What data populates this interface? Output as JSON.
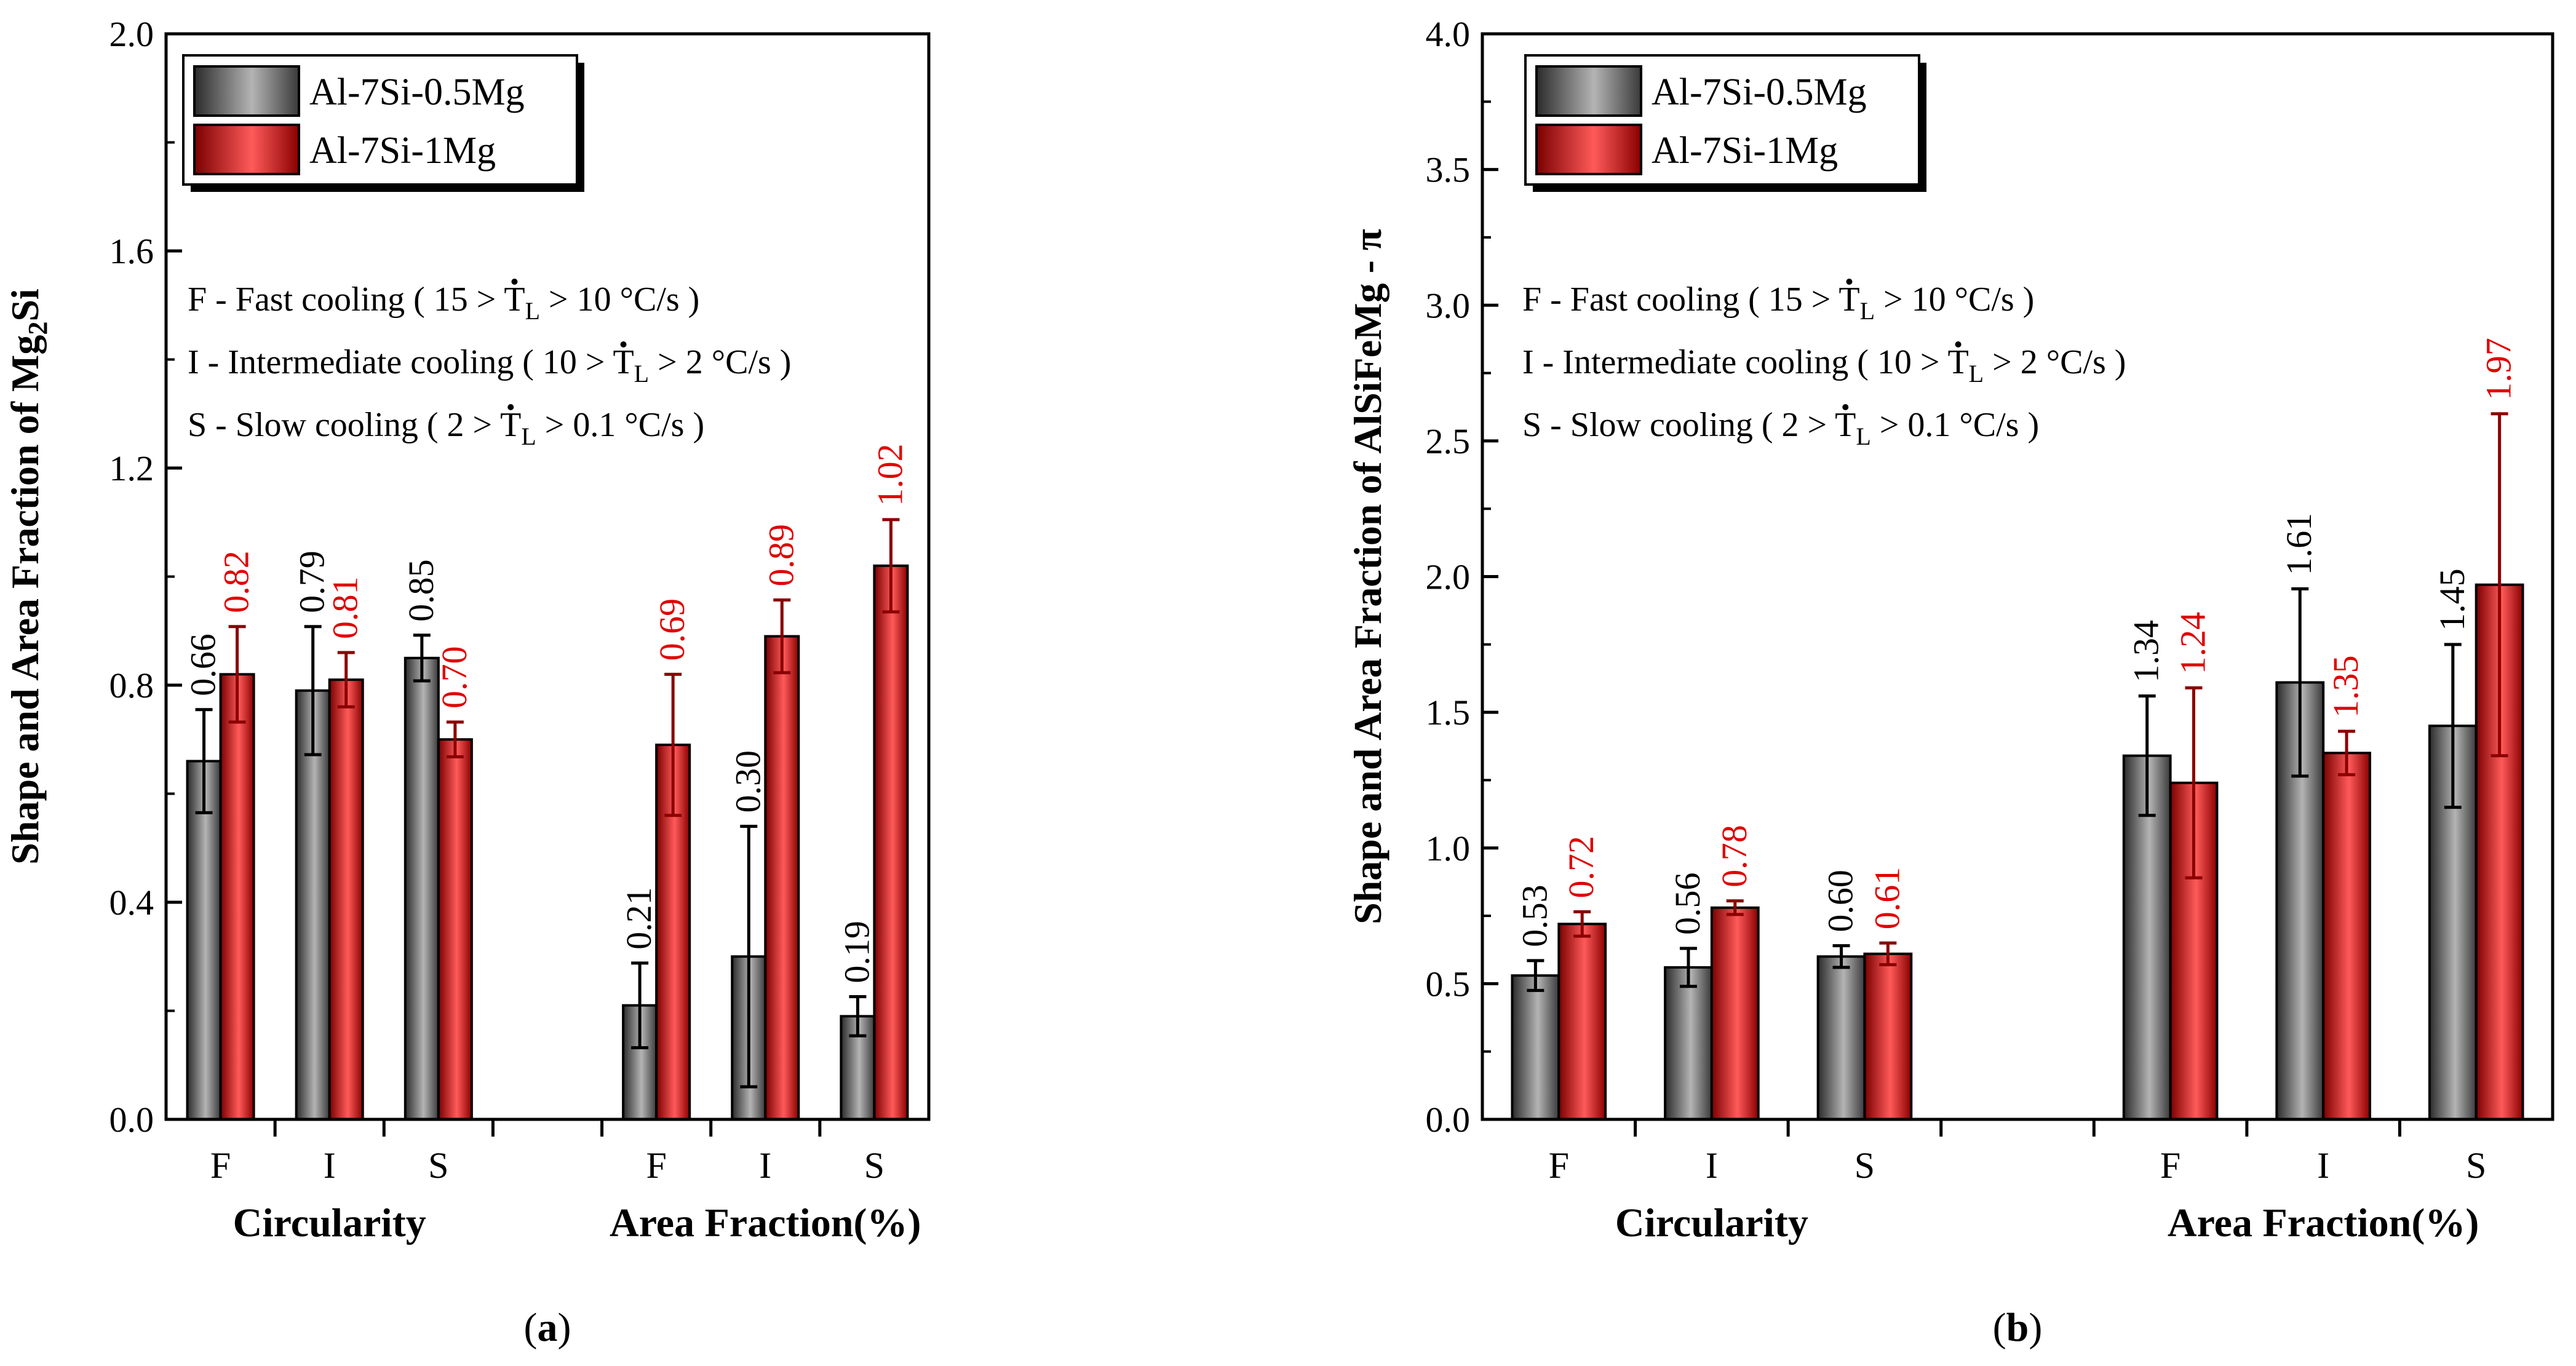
{
  "colors": {
    "gray_dark": "#2b2b2b",
    "gray_mid": "#6e6e6e",
    "gray_light": "#b4b4b4",
    "red_dark": "#7a0000",
    "red_mid": "#e00000",
    "red_light": "#ff5a5a",
    "label_red": "#e00000",
    "error_gray": "#000000",
    "error_red": "#8b0000",
    "axis": "#000000"
  },
  "chart_data": [
    {
      "type": "bar",
      "panel_label": "a",
      "ylabel_main": "Shape and Area Fraction of Mg",
      "ylabel_sub": "2",
      "ylabel_tail": "Si",
      "ylim": [
        0,
        2.0
      ],
      "yticks": [
        "0.0",
        "0.4",
        "0.8",
        "1.2",
        "1.6",
        "2.0"
      ],
      "ytick_values": [
        0,
        0.4,
        0.8,
        1.2,
        1.6,
        2.0
      ],
      "groups": [
        {
          "name": "Circularity",
          "categories": [
            "F",
            "I",
            "S"
          ]
        },
        {
          "name": "Area Fraction(%)",
          "categories": [
            "F",
            "I",
            "S"
          ]
        }
      ],
      "series": [
        {
          "name": "Al-7Si-0.5Mg",
          "values": [
            0.66,
            0.79,
            0.85,
            0.21,
            0.3,
            0.19
          ],
          "errors": [
            0.095,
            0.118,
            0.042,
            0.078,
            0.24,
            0.036
          ],
          "labels": [
            "0.66",
            "0.79",
            "0.85",
            "0.21",
            "0.30",
            "0.19"
          ]
        },
        {
          "name": "Al-7Si-1Mg",
          "values": [
            0.82,
            0.81,
            0.7,
            0.69,
            0.89,
            1.02
          ],
          "errors": [
            0.088,
            0.05,
            0.032,
            0.13,
            0.067,
            0.085
          ],
          "labels": [
            "0.82",
            "0.81",
            "0.70",
            "0.69",
            "0.89",
            "1.02"
          ]
        }
      ],
      "notes": [
        {
          "prefix": "F - Fast cooling ( 15 > ",
          "symbol": "T",
          "sub": "L",
          "suffix": " > 10 °C/s )"
        },
        {
          "prefix": "I  - Intermediate cooling ( 10 > ",
          "symbol": "T",
          "sub": "L",
          "suffix": " > 2 °C/s )"
        },
        {
          "prefix": "S - Slow cooling ( 2 > ",
          "symbol": "T",
          "sub": "L",
          "suffix": " > 0.1 °C/s  )"
        }
      ]
    },
    {
      "type": "bar",
      "panel_label": "b",
      "ylabel_main": "Shape and Area Fraction of AlSiFeMg - π",
      "ylabel_sub": "",
      "ylabel_tail": "",
      "ylim": [
        0,
        4.0
      ],
      "yticks": [
        "0.0",
        "0.5",
        "1.0",
        "1.5",
        "2.0",
        "2.5",
        "3.0",
        "3.5",
        "4.0"
      ],
      "ytick_values": [
        0,
        0.5,
        1.0,
        1.5,
        2.0,
        2.5,
        3.0,
        3.5,
        4.0
      ],
      "groups": [
        {
          "name": "Circularity",
          "categories": [
            "F",
            "I",
            "S"
          ]
        },
        {
          "name": "Area Fraction(%)",
          "categories": [
            "F",
            "I",
            "S"
          ]
        }
      ],
      "series": [
        {
          "name": "Al-7Si-0.5Mg",
          "values": [
            0.53,
            0.56,
            0.6,
            1.34,
            1.61,
            1.45
          ],
          "errors": [
            0.055,
            0.07,
            0.04,
            0.22,
            0.345,
            0.3
          ],
          "labels": [
            "0.53",
            "0.56",
            "0.60",
            "1.34",
            "1.61",
            "1.45"
          ]
        },
        {
          "name": "Al-7Si-1Mg",
          "values": [
            0.72,
            0.78,
            0.61,
            1.24,
            1.35,
            1.97
          ],
          "errors": [
            0.045,
            0.025,
            0.04,
            0.35,
            0.08,
            0.63
          ],
          "labels": [
            "0.72",
            "0.78",
            "0.61",
            "1.24",
            "1.35",
            "1.97"
          ]
        }
      ],
      "notes": [
        {
          "prefix": "F - Fast cooling ( 15 > ",
          "symbol": "T",
          "sub": "L",
          "suffix": " > 10 °C/s )"
        },
        {
          "prefix": "I  - Intermediate cooling ( 10 > ",
          "symbol": "T",
          "sub": "L",
          "suffix": " > 2 °C/s )"
        },
        {
          "prefix": "S - Slow cooling ( 2 > ",
          "symbol": "T",
          "sub": "L",
          "suffix": " > 0.1 °C/s  )"
        }
      ]
    }
  ]
}
